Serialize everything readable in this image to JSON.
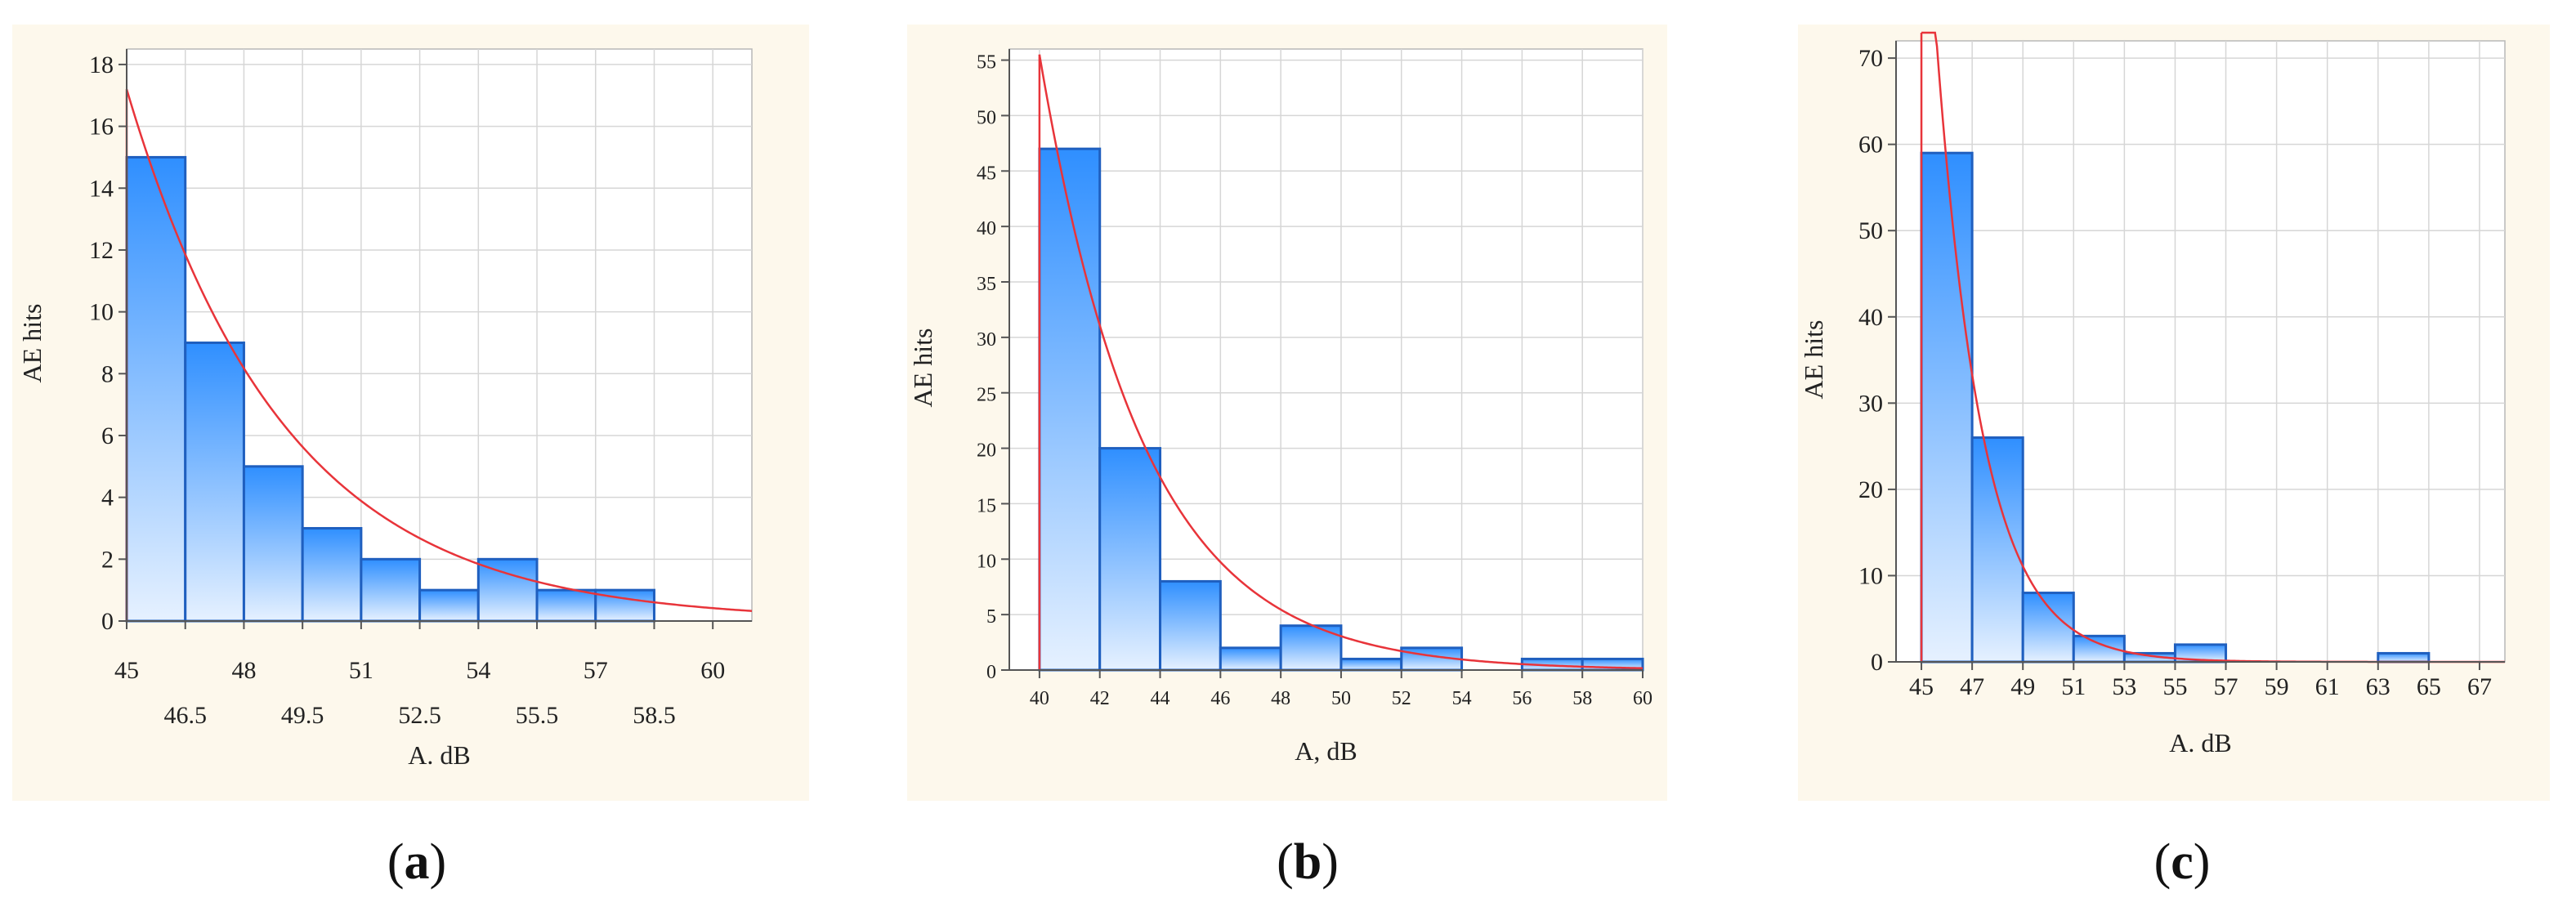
{
  "chart_data": [
    {
      "type": "bar",
      "panel_label": "a",
      "xlabel": "A. dB",
      "ylabel": "AE hits",
      "xlim": [
        45,
        61
      ],
      "ylim": [
        0,
        18.5
      ],
      "xticks_row1": [
        45,
        48,
        51,
        54,
        57,
        60
      ],
      "xticks_row2": [
        46.5,
        49.5,
        52.5,
        55.5,
        58.5
      ],
      "yticks": [
        0,
        2,
        4,
        6,
        8,
        10,
        12,
        14,
        16,
        18
      ],
      "bin_width": 1.5,
      "bins": [
        {
          "x0": 45,
          "value": 15
        },
        {
          "x0": 46.5,
          "value": 9
        },
        {
          "x0": 48,
          "value": 5
        },
        {
          "x0": 49.5,
          "value": 3
        },
        {
          "x0": 51,
          "value": 2
        },
        {
          "x0": 52.5,
          "value": 1
        },
        {
          "x0": 54,
          "value": 2
        },
        {
          "x0": 55.5,
          "value": 1
        },
        {
          "x0": 57,
          "value": 1
        }
      ],
      "fit_curve": {
        "type": "exponential",
        "x0": 45,
        "amplitude": 17.2,
        "rate": 0.248
      },
      "grid": true
    },
    {
      "type": "bar",
      "panel_label": "b",
      "xlabel": "A, dB",
      "ylabel": "AE hits",
      "xlim": [
        39,
        60
      ],
      "ylim": [
        0,
        56
      ],
      "xticks_row1": [
        40,
        42,
        44,
        46,
        48,
        50,
        52,
        54,
        56,
        58,
        60
      ],
      "xticks_row2": [],
      "yticks": [
        0,
        5,
        10,
        15,
        20,
        25,
        30,
        35,
        40,
        45,
        50,
        55
      ],
      "bin_width": 2,
      "bins": [
        {
          "x0": 40,
          "value": 47
        },
        {
          "x0": 42,
          "value": 20
        },
        {
          "x0": 44,
          "value": 8
        },
        {
          "x0": 46,
          "value": 2
        },
        {
          "x0": 48,
          "value": 4
        },
        {
          "x0": 50,
          "value": 1
        },
        {
          "x0": 52,
          "value": 2
        },
        {
          "x0": 54,
          "value": 0
        },
        {
          "x0": 56,
          "value": 1
        },
        {
          "x0": 58,
          "value": 1
        }
      ],
      "fit_curve": {
        "type": "exponential",
        "x0": 40,
        "amplitude": 55.5,
        "rate": 0.29
      },
      "grid": true
    },
    {
      "type": "bar",
      "panel_label": "c",
      "xlabel": "A. dB",
      "ylabel": "AE hits",
      "xlim": [
        44,
        68
      ],
      "ylim": [
        0,
        72
      ],
      "xticks_row1": [
        45,
        47,
        49,
        51,
        53,
        55,
        57,
        59,
        61,
        63,
        65,
        67
      ],
      "xticks_row2": [],
      "yticks": [
        0,
        10,
        20,
        30,
        40,
        50,
        60,
        70
      ],
      "bin_width": 2,
      "bins": [
        {
          "x0": 45,
          "value": 59
        },
        {
          "x0": 47,
          "value": 26
        },
        {
          "x0": 49,
          "value": 8
        },
        {
          "x0": 51,
          "value": 3
        },
        {
          "x0": 53,
          "value": 1
        },
        {
          "x0": 55,
          "value": 2
        },
        {
          "x0": 57,
          "value": 0
        },
        {
          "x0": 59,
          "value": 0
        },
        {
          "x0": 61,
          "value": 0
        },
        {
          "x0": 63,
          "value": 1
        }
      ],
      "fit_curve": {
        "type": "exponential",
        "x0": 45,
        "amplitude": 100,
        "rate": 0.55
      },
      "grid": true
    }
  ],
  "colors": {
    "bar_top": "#2f8fff",
    "bar_bottom": "#e6f1ff",
    "bar_edge": "#1f5fbf",
    "fit_curve": "#e8343a",
    "panel_background": "#fdf8ec"
  },
  "captions": [
    {
      "open": "(",
      "letter": "a",
      "close": ")"
    },
    {
      "open": "(",
      "letter": "b",
      "close": ")"
    },
    {
      "open": "(",
      "letter": "c",
      "close": ")"
    }
  ]
}
